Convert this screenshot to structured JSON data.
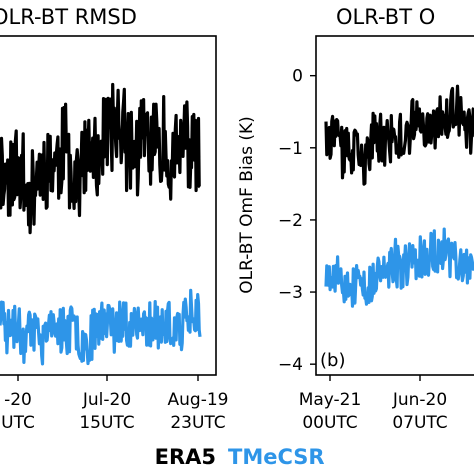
{
  "chart_data": [
    {
      "type": "line",
      "title": "OLR-BT RMSD",
      "xticks": [
        {
          "l1": "-20",
          "l2": "UTC"
        },
        {
          "l1": "Jul-20",
          "l2": "15UTC"
        },
        {
          "l1": "Aug-19",
          "l2": "23UTC"
        }
      ],
      "series": [
        {
          "name": "ERA5",
          "color": "#000000",
          "level": 0.62,
          "noise": 0.13,
          "seed": 11
        },
        {
          "name": "TMeCSR",
          "color": "#2e95e8",
          "level": 0.16,
          "noise": 0.07,
          "seed": 23
        }
      ]
    },
    {
      "type": "line",
      "title": "OLR-BT O",
      "ylabel": "OLR-BT OmF Bias (K)",
      "ylim": [
        -4.15,
        0.55
      ],
      "yticks": [
        "0",
        "−1",
        "−2",
        "−3",
        "−4"
      ],
      "xticks": [
        {
          "l1": "May-21",
          "l2": "00UTC"
        },
        {
          "l1": "Jun-20",
          "l2": "07UTC"
        }
      ],
      "panel_label": "(b)",
      "series": [
        {
          "name": "ERA5",
          "color": "#000000",
          "level": -0.7,
          "noise": 0.35,
          "seed": 37
        },
        {
          "name": "TMeCSR",
          "color": "#2e95e8",
          "level": -2.65,
          "noise": 0.3,
          "seed": 53
        }
      ]
    }
  ],
  "legend": [
    {
      "label": "ERA5",
      "color": "#000000"
    },
    {
      "label": "TMeCSR",
      "color": "#2e95e8"
    }
  ]
}
